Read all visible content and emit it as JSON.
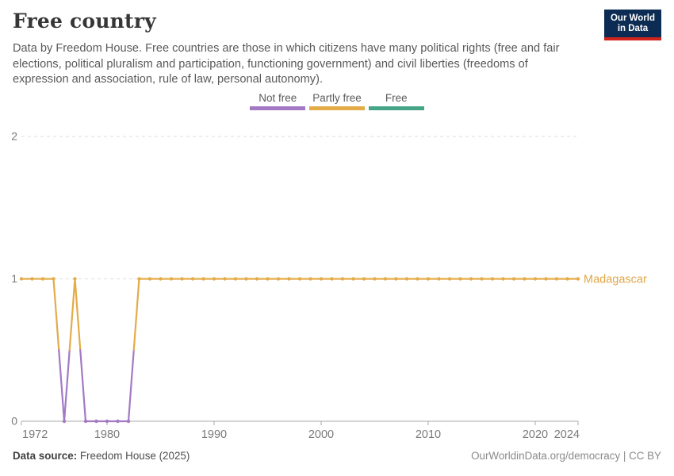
{
  "header": {
    "title": "Free country",
    "subtitle": "Data by Freedom House. Free countries are those in which citizens have many political rights (free and fair elections, political pluralism and participation, functioning government) and civil liberties (freedoms of expression and association, rule of law, personal autonomy).",
    "logo": {
      "line1": "Our World",
      "line2": "in Data",
      "bg_color": "#0d2c54",
      "accent_color": "#d1241c"
    }
  },
  "legend": {
    "items": [
      {
        "label": "Not free",
        "value": 0,
        "color": "#a379c4"
      },
      {
        "label": "Partly free",
        "value": 1,
        "color": "#e4ab49"
      },
      {
        "label": "Free",
        "value": 2,
        "color": "#46a587"
      }
    ]
  },
  "chart_data": {
    "type": "line",
    "title": "Free country",
    "xlabel": "",
    "ylabel": "",
    "xlim": [
      1972,
      2024
    ],
    "ylim": [
      0,
      2
    ],
    "x_ticks": [
      1972,
      1980,
      1990,
      2000,
      2010,
      2020,
      2024
    ],
    "y_ticks": [
      0,
      1,
      2
    ],
    "grid": "horizontal dashed at y=1 and y=2, solid baseline at y=0",
    "legend_position": "top center",
    "value_categories": {
      "0": "Not free",
      "1": "Partly free",
      "2": "Free"
    },
    "category_colors": {
      "0": "#a379c4",
      "1": "#e4ab49",
      "2": "#46a587"
    },
    "series": [
      {
        "name": "Madagascar",
        "label_color": "#e0a648",
        "x": [
          1972,
          1973,
          1974,
          1975,
          1976,
          1977,
          1978,
          1979,
          1980,
          1981,
          1982,
          1983,
          1984,
          1985,
          1986,
          1987,
          1988,
          1989,
          1990,
          1991,
          1992,
          1993,
          1994,
          1995,
          1996,
          1997,
          1998,
          1999,
          2000,
          2001,
          2002,
          2003,
          2004,
          2005,
          2006,
          2007,
          2008,
          2009,
          2010,
          2011,
          2012,
          2013,
          2014,
          2015,
          2016,
          2017,
          2018,
          2019,
          2020,
          2021,
          2022,
          2023,
          2024
        ],
        "values": [
          1,
          1,
          1,
          1,
          0,
          1,
          0,
          0,
          0,
          0,
          0,
          1,
          1,
          1,
          1,
          1,
          1,
          1,
          1,
          1,
          1,
          1,
          1,
          1,
          1,
          1,
          1,
          1,
          1,
          1,
          1,
          1,
          1,
          1,
          1,
          1,
          1,
          1,
          1,
          1,
          1,
          1,
          1,
          1,
          1,
          1,
          1,
          1,
          1,
          1,
          1,
          1,
          1
        ]
      }
    ]
  },
  "footer": {
    "source_label": "Data source:",
    "source_value": "Freedom House (2025)",
    "right_text": "OurWorldinData.org/democracy | CC BY"
  },
  "axis_style": {
    "tick_label_color": "#7a7a7a",
    "gridline_color": "#dcdcdc",
    "baseline_color": "#a9a9a9"
  }
}
